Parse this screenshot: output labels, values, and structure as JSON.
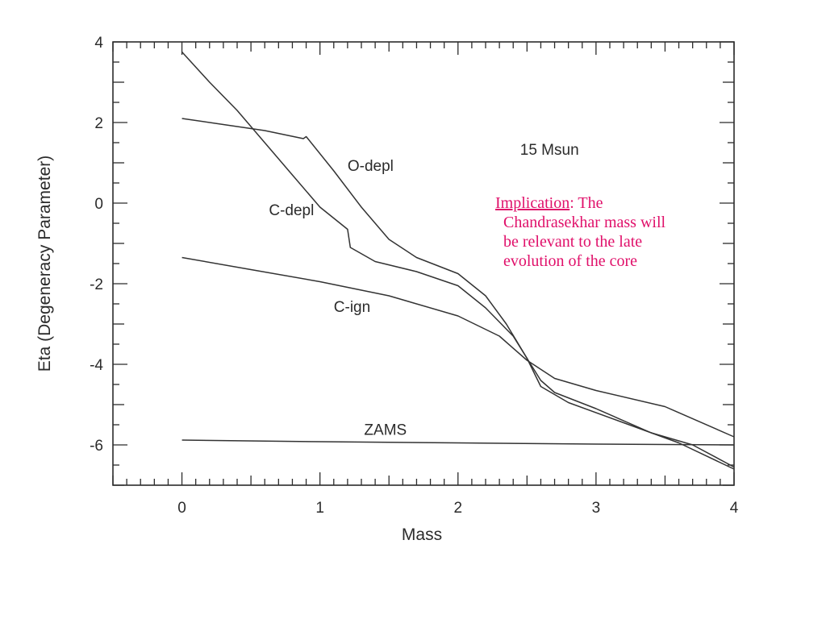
{
  "chart_data": {
    "type": "line",
    "title": "15 Msun",
    "xlabel": "Mass",
    "ylabel": "Eta (Degeneracy Parameter)",
    "xlim": [
      -0.5,
      4
    ],
    "ylim": [
      -7,
      4
    ],
    "xticks": [
      0,
      1,
      2,
      3,
      4
    ],
    "yticks": [
      4,
      2,
      0,
      -2,
      -4,
      -6
    ],
    "series": [
      {
        "name": "O-depl",
        "x": [
          0.0,
          0.3,
          0.6,
          0.88,
          0.9,
          1.1,
          1.3,
          1.5,
          1.7,
          2.0,
          2.2,
          2.35,
          2.5,
          2.6,
          2.7,
          3.0,
          3.4,
          3.7,
          4.0
        ],
        "y": [
          2.1,
          1.95,
          1.8,
          1.6,
          1.65,
          0.8,
          -0.1,
          -0.9,
          -1.35,
          -1.75,
          -2.3,
          -3.0,
          -3.85,
          -4.4,
          -4.7,
          -5.1,
          -5.7,
          -6.0,
          -6.55
        ]
      },
      {
        "name": "C-depl",
        "x": [
          0.0,
          0.2,
          0.4,
          0.6,
          0.8,
          1.0,
          1.2,
          1.22,
          1.4,
          1.7,
          2.0,
          2.2,
          2.4,
          2.5,
          2.6,
          2.8,
          3.2,
          3.6,
          4.0
        ],
        "y": [
          3.75,
          3.0,
          2.3,
          1.5,
          0.7,
          -0.1,
          -0.65,
          -1.1,
          -1.45,
          -1.7,
          -2.05,
          -2.6,
          -3.3,
          -3.85,
          -4.55,
          -4.95,
          -5.45,
          -5.95,
          -6.6
        ]
      },
      {
        "name": "C-ign",
        "x": [
          0.0,
          0.5,
          1.0,
          1.5,
          2.0,
          2.3,
          2.5,
          2.7,
          3.0,
          3.5,
          4.0
        ],
        "y": [
          -1.35,
          -1.65,
          -1.95,
          -2.3,
          -2.8,
          -3.3,
          -3.9,
          -4.35,
          -4.65,
          -5.05,
          -5.8
        ]
      },
      {
        "name": "ZAMS",
        "x": [
          0.0,
          1.0,
          2.0,
          3.0,
          4.0
        ],
        "y": [
          -5.88,
          -5.92,
          -5.95,
          -5.98,
          -6.0
        ]
      }
    ],
    "labels": [
      {
        "text": "O-depl",
        "x": 1.2,
        "y": 0.8
      },
      {
        "text": "C-depl",
        "x": 0.63,
        "y": -0.3
      },
      {
        "text": "C-ign",
        "x": 1.1,
        "y": -2.7
      },
      {
        "text": "ZAMS",
        "x": 1.32,
        "y": -5.75
      },
      {
        "text": "15 Msun",
        "x": 2.45,
        "y": 1.2
      }
    ],
    "grid": false,
    "legend": "none"
  },
  "annotation": {
    "lead": "Implication",
    "line1_rest": ":  The",
    "lines": [
      "Chandrasekhar mass will",
      "be relevant to the late",
      "evolution of the core"
    ]
  },
  "colors": {
    "axis": "#2b2b2b",
    "curve": "#333333",
    "annotation": "#e0106a"
  }
}
